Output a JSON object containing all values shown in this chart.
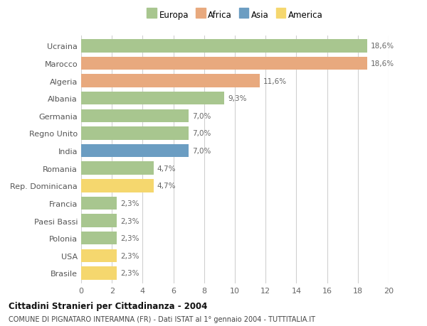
{
  "categories": [
    "Brasile",
    "USA",
    "Polonia",
    "Paesi Bassi",
    "Francia",
    "Rep. Dominicana",
    "Romania",
    "India",
    "Regno Unito",
    "Germania",
    "Albania",
    "Algeria",
    "Marocco",
    "Ucraina"
  ],
  "values": [
    2.3,
    2.3,
    2.3,
    2.3,
    2.3,
    4.7,
    4.7,
    7.0,
    7.0,
    7.0,
    9.3,
    11.6,
    18.6,
    18.6
  ],
  "labels": [
    "2,3%",
    "2,3%",
    "2,3%",
    "2,3%",
    "2,3%",
    "4,7%",
    "4,7%",
    "7,0%",
    "7,0%",
    "7,0%",
    "9,3%",
    "11,6%",
    "18,6%",
    "18,6%"
  ],
  "colors": [
    "#f5d76e",
    "#f5d76e",
    "#a8c68f",
    "#a8c68f",
    "#a8c68f",
    "#f5d76e",
    "#a8c68f",
    "#6b9dc2",
    "#a8c68f",
    "#a8c68f",
    "#a8c68f",
    "#e8a97e",
    "#e8a97e",
    "#a8c68f"
  ],
  "legend_labels": [
    "Europa",
    "Africa",
    "Asia",
    "America"
  ],
  "legend_colors": [
    "#a8c68f",
    "#e8a97e",
    "#6b9dc2",
    "#f5d76e"
  ],
  "title": "Cittadini Stranieri per Cittadinanza - 2004",
  "subtitle": "COMUNE DI PIGNATARO INTERAMNA (FR) - Dati ISTAT al 1° gennaio 2004 - TUTTITALIA.IT",
  "xlim": [
    0,
    20
  ],
  "xticks": [
    0,
    2,
    4,
    6,
    8,
    10,
    12,
    14,
    16,
    18,
    20
  ],
  "background_color": "#ffffff",
  "grid_color": "#d0d0d0",
  "bar_height": 0.75
}
